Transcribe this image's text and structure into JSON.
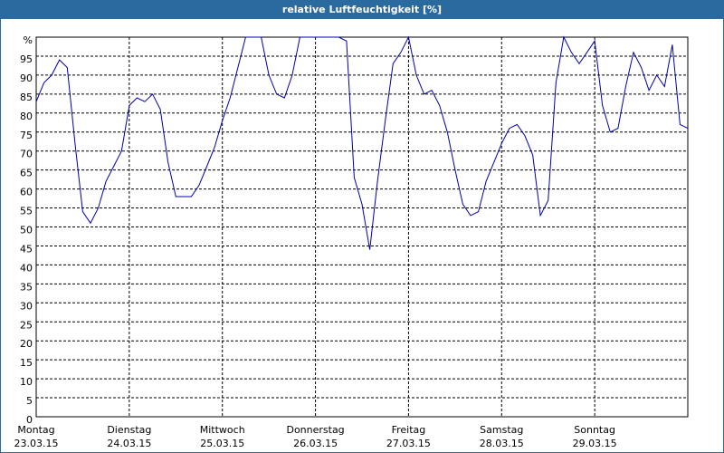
{
  "chart_data": {
    "type": "line",
    "title": "relative Luftfeuchtigkeit [%]",
    "x": [
      0,
      2,
      4,
      6,
      8,
      10,
      12,
      14,
      16,
      18,
      20,
      22,
      24,
      26,
      28,
      30,
      32,
      34,
      36,
      38,
      40,
      42,
      44,
      46,
      48,
      50,
      52,
      54,
      56,
      58,
      60,
      62,
      64,
      66,
      68,
      70,
      72,
      74,
      76,
      78,
      80,
      82,
      84,
      86,
      88,
      90,
      92,
      94,
      96,
      98,
      100,
      102,
      104,
      106,
      108,
      110,
      112,
      114,
      116,
      118,
      120,
      122,
      124,
      126,
      128,
      130,
      132,
      134,
      136,
      138,
      140,
      142,
      144,
      146,
      148,
      150,
      152,
      154,
      156,
      158,
      160,
      162,
      164,
      166,
      168
    ],
    "series": [
      {
        "name": "relative Luftfeuchtigkeit",
        "color": "#0000a8",
        "values": [
          83,
          88,
          90,
          94,
          92,
          72,
          54,
          51,
          55,
          62,
          66,
          70,
          82,
          84,
          83,
          85,
          81,
          67,
          58,
          58,
          58,
          61,
          66,
          71,
          78,
          84,
          92,
          100,
          100,
          100,
          90,
          85,
          84,
          90,
          100,
          100,
          100,
          100,
          100,
          100,
          99,
          63,
          56,
          44,
          62,
          78,
          93,
          96,
          100,
          90,
          85,
          86,
          82,
          75,
          65,
          56,
          53,
          54,
          62,
          67,
          72,
          76,
          77,
          74,
          69,
          53,
          57,
          88,
          100,
          96,
          93,
          96,
          99,
          82,
          75,
          76,
          87,
          96,
          92,
          86,
          90,
          87,
          98,
          77,
          76
        ]
      }
    ],
    "xlim": [
      0,
      168
    ],
    "xticks": [
      {
        "value": 0,
        "label": "Montag",
        "date": "23.03.15"
      },
      {
        "value": 24,
        "label": "Dienstag",
        "date": "24.03.15"
      },
      {
        "value": 48,
        "label": "Mittwoch",
        "date": "25.03.15"
      },
      {
        "value": 72,
        "label": "Donnerstag",
        "date": "26.03.15"
      },
      {
        "value": 96,
        "label": "Freitag",
        "date": "27.03.15"
      },
      {
        "value": 120,
        "label": "Samstag",
        "date": "28.03.15"
      },
      {
        "value": 144,
        "label": "Sonntag",
        "date": "29.03.15"
      }
    ],
    "ylim": [
      0,
      100
    ],
    "yticks": [
      0,
      5,
      10,
      15,
      20,
      25,
      30,
      35,
      40,
      45,
      50,
      55,
      60,
      65,
      70,
      75,
      80,
      85,
      90,
      95,
      {
        "value": 100,
        "label": "%"
      }
    ],
    "grid": true
  }
}
